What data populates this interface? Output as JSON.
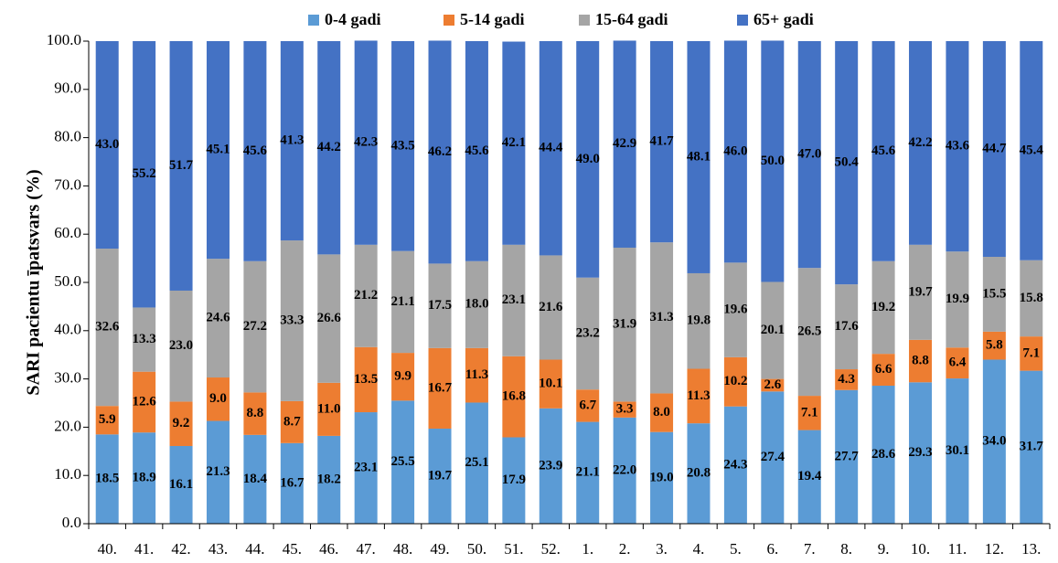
{
  "chart_data": {
    "type": "stacked_bar",
    "y_label": "SARI pacientu īpatsvars (%)",
    "categories": [
      "40.",
      "41.",
      "42.",
      "43.",
      "44.",
      "45.",
      "46.",
      "47.",
      "48.",
      "49.",
      "50.",
      "51.",
      "52.",
      "1.",
      "2.",
      "3.",
      "4.",
      "5.",
      "6.",
      "7.",
      "8.",
      "9.",
      "10.",
      "11.",
      "12.",
      "13."
    ],
    "series": [
      {
        "name": "0-4 gadi",
        "color": "#5b9bd5",
        "values": [
          18.5,
          18.9,
          16.1,
          21.3,
          18.4,
          16.7,
          18.2,
          23.1,
          25.5,
          19.7,
          25.1,
          17.9,
          23.9,
          21.1,
          22.0,
          19.0,
          20.8,
          24.3,
          27.4,
          19.4,
          27.7,
          28.6,
          29.3,
          30.1,
          34.0,
          31.7
        ],
        "value_labels": [
          "18.5",
          "18.9",
          "16.1",
          "21.3",
          "18.4",
          "16.7",
          "18.2",
          "23.1",
          "25.5",
          "19.7",
          "25.1",
          "17.9",
          "23.9",
          "21.1",
          "22.0",
          "19.0",
          "20.8",
          "24.3",
          "27.4",
          "19.4",
          "27.7",
          "28.6",
          "29.3",
          "30.1",
          "34.0",
          "31.7"
        ]
      },
      {
        "name": "5-14 gadi",
        "color": "#ed7d31",
        "values": [
          5.9,
          12.6,
          9.2,
          9.0,
          8.8,
          8.7,
          11.0,
          13.5,
          9.9,
          16.7,
          11.3,
          16.8,
          10.1,
          6.7,
          3.3,
          8.0,
          11.3,
          10.2,
          2.6,
          7.1,
          4.3,
          6.6,
          8.8,
          6.4,
          5.8,
          7.1
        ],
        "value_labels": [
          "5.9",
          "12.6",
          "9.2",
          "9.0",
          "8.8",
          "8.7",
          "11.0",
          "13.5",
          "9.9",
          "16.7",
          "11.3",
          "16.8",
          "10.1",
          "6.7",
          "3.3",
          "8.0",
          "11.3",
          "10.2",
          "2.6",
          "7.1",
          "4.3",
          "6.6",
          "8.8",
          "6.4",
          "5.8",
          "7.1"
        ]
      },
      {
        "name": "15-64 gadi",
        "color": "#a5a5a5",
        "values": [
          32.6,
          13.3,
          23.0,
          24.6,
          27.2,
          33.3,
          26.6,
          21.2,
          21.1,
          17.5,
          18.0,
          23.1,
          21.6,
          23.2,
          31.9,
          31.3,
          19.8,
          19.6,
          20.1,
          26.5,
          17.6,
          19.2,
          19.7,
          19.9,
          15.5,
          15.8
        ],
        "value_labels": [
          "32.6",
          "13.3",
          "23.0",
          "24.6",
          "27.2",
          "33.3",
          "26.6",
          "21.2",
          "21.1",
          "17.5",
          "18.0",
          "23.1",
          "21.6",
          "23.2",
          "31.9",
          "31.3",
          "19.8",
          "19.6",
          "20.1",
          "26.5",
          "17.6",
          "19.2",
          "19.7",
          "19.9",
          "15.5",
          "15.8"
        ]
      },
      {
        "name": "65+ gadi",
        "color": "#4472c4",
        "values": [
          43.0,
          55.2,
          51.7,
          45.1,
          45.6,
          41.3,
          44.2,
          42.3,
          43.5,
          46.2,
          45.6,
          42.1,
          44.4,
          49.0,
          42.9,
          41.7,
          48.1,
          46.0,
          50.0,
          47.0,
          50.4,
          45.6,
          42.2,
          43.6,
          44.7,
          45.4
        ],
        "value_labels": [
          "43.0",
          "55.2",
          "51.7",
          "45.1",
          "45.6",
          "41.3",
          "44.2",
          "42.3",
          "43.5",
          "46.2",
          "45.6",
          "42.1",
          "44.4",
          "49.0",
          "42.9",
          "41.7",
          "48.1",
          "46.0",
          "50.0",
          "47.0",
          "50.4",
          "45.6",
          "42.2",
          "43.6",
          "44.7",
          "45.4"
        ]
      }
    ],
    "ylim": [
      0,
      100
    ],
    "yticks": [
      {
        "value": 0,
        "label": "0.0"
      },
      {
        "value": 10,
        "label": "10.0"
      },
      {
        "value": 20,
        "label": "20.0"
      },
      {
        "value": 30,
        "label": "30.0"
      },
      {
        "value": 40,
        "label": "40.0"
      },
      {
        "value": 50,
        "label": "50.0"
      },
      {
        "value": 60,
        "label": "60.0"
      },
      {
        "value": 70,
        "label": "70.0"
      },
      {
        "value": 80,
        "label": "80.0"
      },
      {
        "value": 90,
        "label": "90.0"
      },
      {
        "value": 100,
        "label": "100.0"
      }
    ],
    "legend": "top"
  }
}
